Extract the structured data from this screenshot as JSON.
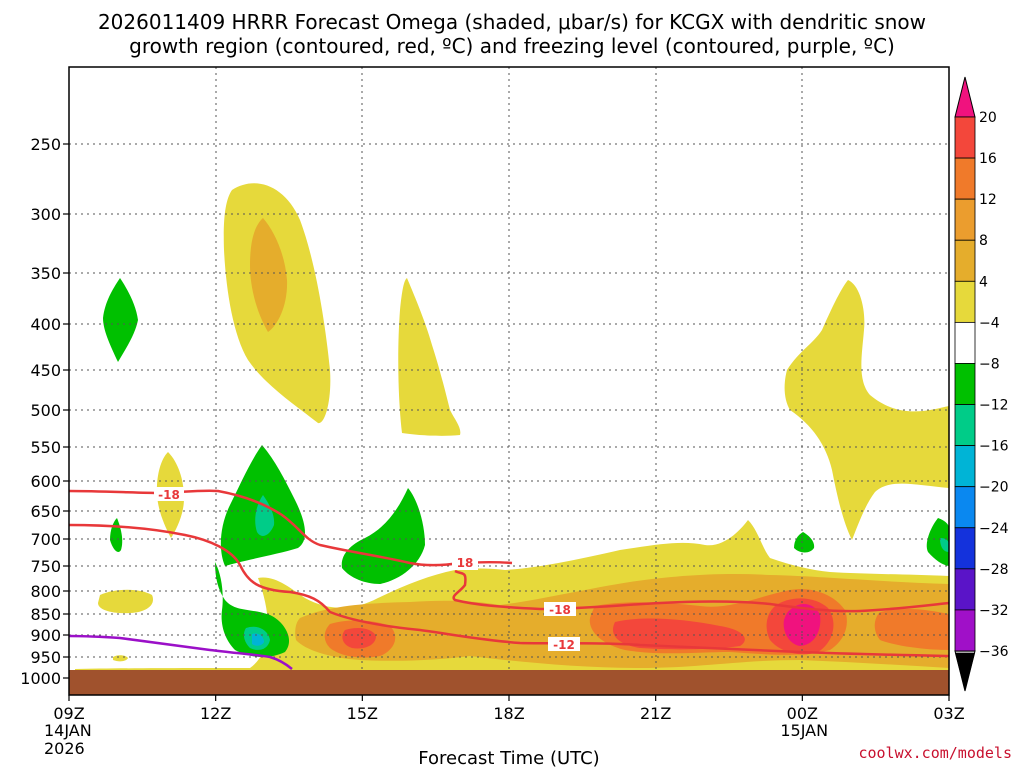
{
  "title": {
    "line1": "2026011409 HRRR Forecast Omega (shaded, μbar/s) for KCGX with dendritic snow",
    "line2": "growth region (contoured, red, ºC) and freezing level (contoured, purple, ºC)"
  },
  "credit": "coolwx.com/models",
  "chart_data": {
    "type": "time-height cross section",
    "xlabel": "Forecast Time (UTC)",
    "ylabel": "",
    "x_ticks": [
      {
        "hour": 0,
        "label": "09Z",
        "sub1": "14JAN",
        "sub2": "2026"
      },
      {
        "hour": 3,
        "label": "12Z"
      },
      {
        "hour": 6,
        "label": "15Z"
      },
      {
        "hour": 9,
        "label": "18Z"
      },
      {
        "hour": 12,
        "label": "21Z"
      },
      {
        "hour": 15,
        "label": "00Z",
        "sub1": "15JAN"
      },
      {
        "hour": 18,
        "label": "03Z"
      }
    ],
    "x_range_hours": [
      0,
      18
    ],
    "y_ticks": [
      250,
      300,
      350,
      400,
      450,
      500,
      550,
      600,
      650,
      700,
      750,
      800,
      850,
      900,
      950,
      1000
    ],
    "y_range_hPa": [
      200,
      1000
    ],
    "colorbar": {
      "unit": "μbar/s",
      "levels": [
        "20",
        "16",
        "12",
        "8",
        "4",
        "−4",
        "−8",
        "−12",
        "−16",
        "−20",
        "−24",
        "−28",
        "−32",
        "−36"
      ],
      "bins": [
        {
          "color": "#f0127e"
        },
        {
          "color": "#f3473b"
        },
        {
          "color": "#f07a2a"
        },
        {
          "color": "#eb9d2e"
        },
        {
          "color": "#e5ad2c"
        },
        {
          "color": "#e6d93b"
        },
        {
          "color": "#ffffff"
        },
        {
          "color": "#00c000"
        },
        {
          "color": "#00cc88"
        },
        {
          "color": "#00b4d6"
        },
        {
          "color": "#0a88f0"
        },
        {
          "color": "#1432dc"
        },
        {
          "color": "#5a14c8"
        },
        {
          "color": "#a010c8"
        },
        {
          "color": "#a8a8a8"
        }
      ]
    },
    "contours": {
      "dgz_red": {
        "color": "#e8383a",
        "levels": [
          -12,
          -18
        ],
        "labels": [
          "-18",
          "18",
          "-18",
          "-12"
        ]
      },
      "freezing_purple": {
        "color": "#9b10c8"
      }
    },
    "terrain": {
      "color": "#a0522d",
      "below_hPa": 975
    }
  }
}
